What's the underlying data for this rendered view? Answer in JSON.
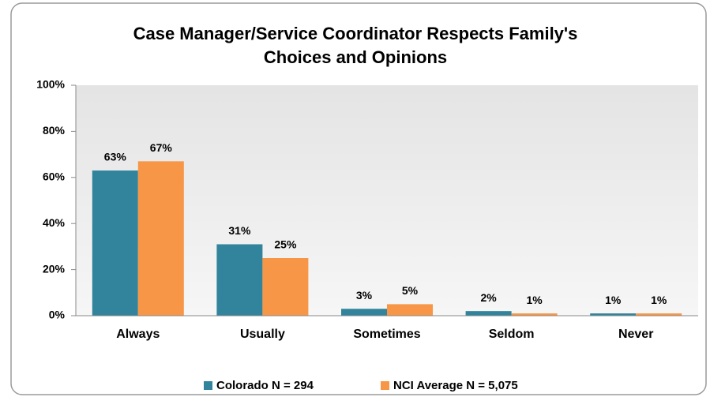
{
  "chart_data": {
    "type": "bar",
    "title": "Case Manager/Service Coordinator Respects Family's Choices and Opinions",
    "categories": [
      "Always",
      "Usually",
      "Sometimes",
      "Seldom",
      "Never"
    ],
    "series": [
      {
        "name": "Colorado N = 294",
        "color": "#31849b",
        "values": [
          63,
          31,
          3,
          2,
          1
        ],
        "value_labels": [
          "63%",
          "31%",
          "3%",
          "2%",
          "1%"
        ]
      },
      {
        "name": "NCI Average N = 5,075",
        "color": "#f79646",
        "values": [
          67,
          25,
          5,
          1,
          1
        ],
        "value_labels": [
          "67%",
          "25%",
          "5%",
          "1%",
          "1%"
        ]
      }
    ],
    "ylim": [
      0,
      100
    ],
    "yticks": [
      {
        "value": 0,
        "label": "0%"
      },
      {
        "value": 20,
        "label": "20%"
      },
      {
        "value": 40,
        "label": "40%"
      },
      {
        "value": 60,
        "label": "60%"
      },
      {
        "value": 80,
        "label": "80%"
      },
      {
        "value": 100,
        "label": "100%"
      }
    ],
    "legend": "bottom"
  }
}
